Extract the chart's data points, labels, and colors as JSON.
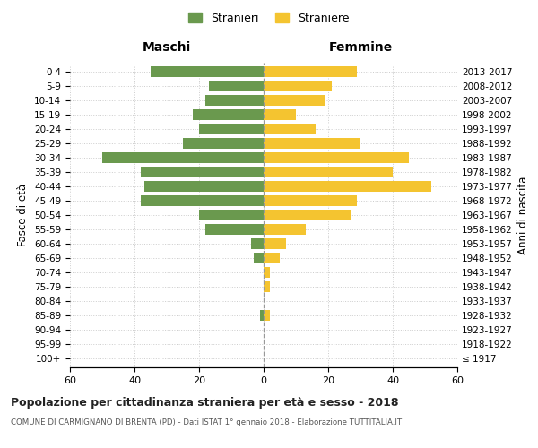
{
  "age_groups": [
    "100+",
    "95-99",
    "90-94",
    "85-89",
    "80-84",
    "75-79",
    "70-74",
    "65-69",
    "60-64",
    "55-59",
    "50-54",
    "45-49",
    "40-44",
    "35-39",
    "30-34",
    "25-29",
    "20-24",
    "15-19",
    "10-14",
    "5-9",
    "0-4"
  ],
  "birth_years": [
    "≤ 1917",
    "1918-1922",
    "1923-1927",
    "1928-1932",
    "1933-1937",
    "1938-1942",
    "1943-1947",
    "1948-1952",
    "1953-1957",
    "1958-1962",
    "1963-1967",
    "1968-1972",
    "1973-1977",
    "1978-1982",
    "1983-1987",
    "1988-1992",
    "1993-1997",
    "1998-2002",
    "2003-2007",
    "2008-2012",
    "2013-2017"
  ],
  "males": [
    0,
    0,
    0,
    1,
    0,
    0,
    0,
    3,
    4,
    18,
    20,
    38,
    37,
    38,
    50,
    25,
    20,
    22,
    18,
    17,
    35
  ],
  "females": [
    0,
    0,
    0,
    2,
    0,
    2,
    2,
    5,
    7,
    13,
    27,
    29,
    52,
    40,
    45,
    30,
    16,
    10,
    19,
    21,
    29
  ],
  "male_color": "#6a994e",
  "female_color": "#f4c430",
  "xlim": 60,
  "xlabel_left": "Maschi",
  "xlabel_right": "Femmine",
  "ylabel_left": "Fasce di età",
  "ylabel_right": "Anni di nascita",
  "legend_male": "Stranieri",
  "legend_female": "Straniere",
  "title": "Popolazione per cittadinanza straniera per età e sesso - 2018",
  "subtitle": "COMUNE DI CARMIGNANO DI BRENTA (PD) - Dati ISTAT 1° gennaio 2018 - Elaborazione TUTTITALIA.IT",
  "background_color": "#ffffff",
  "grid_color": "#cccccc"
}
